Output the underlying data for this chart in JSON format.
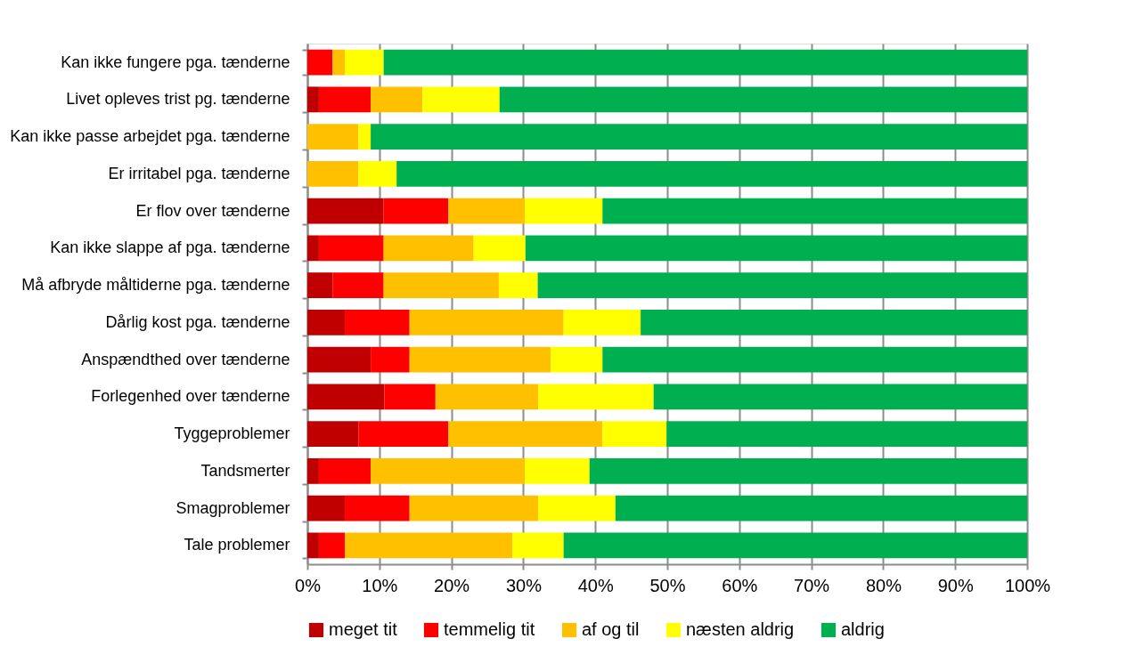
{
  "chart_data": {
    "type": "bar",
    "orientation": "horizontal",
    "stacked": true,
    "categories": [
      "Kan ikke fungere pga. tænderne",
      "Livet opleves trist pg. tænderne",
      "Kan ikke passe arbejdet pga. tænderne",
      "Er irritabel pga. tænderne",
      "Er flov over tænderne",
      "Kan ikke slappe af pga. tænderne",
      "Må afbryde måltiderne pga. tænderne",
      "Dårlig kost pga. tænderne",
      "Anspændthed over tænderne",
      "Forlegenhed over tænderne",
      "Tyggeproblemer",
      "Tandsmerter",
      "Smagproblemer",
      "Tale problemer"
    ],
    "series": [
      {
        "name": "meget tit",
        "color": "#c00000",
        "values": [
          0,
          1.6,
          0,
          0,
          10.6,
          1.6,
          3.5,
          5.2,
          8.8,
          10.7,
          7.1,
          1.6,
          5.2,
          1.6
        ]
      },
      {
        "name": "temmelig tit",
        "color": "#ff0000",
        "values": [
          3.5,
          7.2,
          0,
          0,
          9.0,
          9.0,
          7.1,
          9.0,
          5.4,
          7.1,
          12.5,
          7.2,
          9.0,
          3.6
        ]
      },
      {
        "name": "af og til",
        "color": "#ffc000",
        "values": [
          1.7,
          7.2,
          7.1,
          7.1,
          10.6,
          12.5,
          16.0,
          21.4,
          19.6,
          14.3,
          21.4,
          21.4,
          17.9,
          23.3
        ]
      },
      {
        "name": "næsten aldrig",
        "color": "#ffff00",
        "values": [
          5.4,
          10.7,
          1.7,
          5.3,
          10.8,
          7.2,
          5.4,
          10.7,
          7.2,
          16.0,
          8.9,
          9.0,
          10.7,
          7.1
        ]
      },
      {
        "name": "aldrig",
        "color": "#00b050",
        "values": [
          89.4,
          73.3,
          91.2,
          87.6,
          59.0,
          69.7,
          68.0,
          53.7,
          59.0,
          51.9,
          50.1,
          60.8,
          57.2,
          64.4
        ]
      }
    ],
    "xlim": [
      0,
      100
    ],
    "xticks": [
      {
        "value": 0,
        "label": "0%"
      },
      {
        "value": 10,
        "label": "10%"
      },
      {
        "value": 20,
        "label": "20%"
      },
      {
        "value": 30,
        "label": "30%"
      },
      {
        "value": 40,
        "label": "40%"
      },
      {
        "value": 50,
        "label": "50%"
      },
      {
        "value": 60,
        "label": "60%"
      },
      {
        "value": 70,
        "label": "70%"
      },
      {
        "value": 80,
        "label": "80%"
      },
      {
        "value": 90,
        "label": "90%"
      },
      {
        "value": 100,
        "label": "100%"
      }
    ],
    "grid": "x",
    "legend": "bottom"
  }
}
